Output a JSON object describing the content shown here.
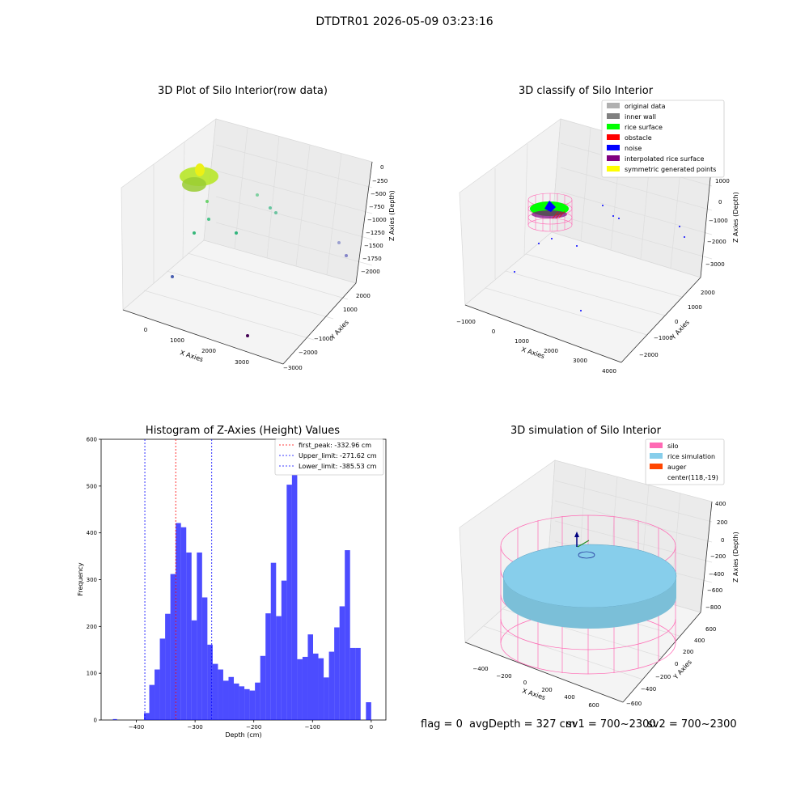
{
  "suptitle": "DTDTR01 2026-05-09 03:23:16",
  "panels": {
    "raw": {
      "title": "3D Plot of Silo Interior(row data)",
      "xlabel": "X Axies",
      "ylabel": "Y Axies",
      "zlabel": "Z Axies (Depth)",
      "x_ticks": [
        "0",
        "1000",
        "2000",
        "3000"
      ],
      "y_ticks": [
        "2000",
        "1000",
        "−1000",
        "−2000",
        "−3000"
      ],
      "z_ticks": [
        "0",
        "−250",
        "−500",
        "−750",
        "−1000",
        "−1250",
        "−1500",
        "−1750",
        "−2000"
      ]
    },
    "classify": {
      "title": "3D classify of Silo Interior",
      "xlabel": "X Axies",
      "ylabel": "Y Axies",
      "zlabel": "Z Axies (Depth)",
      "x_ticks": [
        "−1000",
        "0",
        "1000",
        "2000",
        "3000",
        "4000"
      ],
      "y_ticks": [
        "2000",
        "1000",
        "0",
        "−1000",
        "−2000"
      ],
      "z_ticks": [
        "1000",
        "0",
        "−1000",
        "−2000",
        "−3000"
      ],
      "legend": [
        {
          "label": "original data",
          "color": "#b0b0b0"
        },
        {
          "label": "inner wall",
          "color": "#808080"
        },
        {
          "label": "rice surface",
          "color": "#00ff00"
        },
        {
          "label": "obstacle",
          "color": "#ff0000"
        },
        {
          "label": "noise",
          "color": "#0000ff"
        },
        {
          "label": "interpolated rice surface",
          "color": "#800080"
        },
        {
          "label": "symmetric generated points",
          "color": "#ffff00"
        }
      ]
    },
    "simulation": {
      "title": "3D simulation of Silo Interior",
      "xlabel": "X Axies",
      "ylabel": "Y Axies",
      "zlabel": "Z Axies (Depth)",
      "x_ticks": [
        "−400",
        "−200",
        "0",
        "200",
        "400",
        "600"
      ],
      "y_ticks": [
        "600",
        "400",
        "200",
        "0",
        "−200",
        "−400",
        "−600"
      ],
      "z_ticks": [
        "400",
        "200",
        "0",
        "−200",
        "−400",
        "−600",
        "−800"
      ],
      "legend": [
        {
          "label": "silo",
          "color": "#ff69b4",
          "swatch": true
        },
        {
          "label": "rice simulation",
          "color": "#87ceeb",
          "swatch": true
        },
        {
          "label": "auger",
          "color": "#ff4500",
          "swatch": true
        },
        {
          "label": "center(118,-19)",
          "color": "#ffffff",
          "swatch": false
        }
      ]
    }
  },
  "chart_data": {
    "type": "bar",
    "title": "Histogram of Z-Axies (Height) Values",
    "xlabel": "Depth (cm)",
    "ylabel": "Frequency",
    "xlim": [
      -460,
      25
    ],
    "ylim": [
      0,
      600
    ],
    "x_ticks": [
      -400,
      -300,
      -200,
      -100,
      0
    ],
    "x_tick_labels": [
      "−400",
      "−300",
      "−200",
      "−100",
      "0"
    ],
    "y_ticks": [
      0,
      100,
      200,
      300,
      400,
      500,
      600
    ],
    "bar_color": "#0000ff",
    "bins": [
      {
        "x0": -440,
        "x1": -433,
        "count": 2
      },
      {
        "x0": -387,
        "x1": -378,
        "count": 15
      },
      {
        "x0": -378,
        "x1": -369,
        "count": 75
      },
      {
        "x0": -369,
        "x1": -360,
        "count": 108
      },
      {
        "x0": -360,
        "x1": -351,
        "count": 174
      },
      {
        "x0": -351,
        "x1": -342,
        "count": 227
      },
      {
        "x0": -342,
        "x1": -333,
        "count": 312
      },
      {
        "x0": -333,
        "x1": -324,
        "count": 421
      },
      {
        "x0": -324,
        "x1": -315,
        "count": 412
      },
      {
        "x0": -315,
        "x1": -306,
        "count": 358
      },
      {
        "x0": -306,
        "x1": -297,
        "count": 213
      },
      {
        "x0": -297,
        "x1": -288,
        "count": 358
      },
      {
        "x0": -288,
        "x1": -279,
        "count": 262
      },
      {
        "x0": -279,
        "x1": -270,
        "count": 161
      },
      {
        "x0": -270,
        "x1": -261,
        "count": 120
      },
      {
        "x0": -261,
        "x1": -252,
        "count": 108
      },
      {
        "x0": -252,
        "x1": -243,
        "count": 84
      },
      {
        "x0": -243,
        "x1": -234,
        "count": 92
      },
      {
        "x0": -234,
        "x1": -225,
        "count": 78
      },
      {
        "x0": -225,
        "x1": -216,
        "count": 72
      },
      {
        "x0": -216,
        "x1": -207,
        "count": 66
      },
      {
        "x0": -207,
        "x1": -198,
        "count": 63
      },
      {
        "x0": -198,
        "x1": -189,
        "count": 80
      },
      {
        "x0": -189,
        "x1": -180,
        "count": 137
      },
      {
        "x0": -180,
        "x1": -171,
        "count": 228
      },
      {
        "x0": -171,
        "x1": -162,
        "count": 336
      },
      {
        "x0": -162,
        "x1": -153,
        "count": 222
      },
      {
        "x0": -153,
        "x1": -144,
        "count": 298
      },
      {
        "x0": -144,
        "x1": -135,
        "count": 503
      },
      {
        "x0": -135,
        "x1": -126,
        "count": 538
      },
      {
        "x0": -126,
        "x1": -117,
        "count": 130
      },
      {
        "x0": -117,
        "x1": -108,
        "count": 135
      },
      {
        "x0": -108,
        "x1": -99,
        "count": 183
      },
      {
        "x0": -99,
        "x1": -90,
        "count": 142
      },
      {
        "x0": -90,
        "x1": -81,
        "count": 132
      },
      {
        "x0": -81,
        "x1": -72,
        "count": 91
      },
      {
        "x0": -72,
        "x1": -63,
        "count": 146
      },
      {
        "x0": -63,
        "x1": -54,
        "count": 198
      },
      {
        "x0": -54,
        "x1": -45,
        "count": 243
      },
      {
        "x0": -45,
        "x1": -36,
        "count": 363
      },
      {
        "x0": -36,
        "x1": -27,
        "count": 154
      },
      {
        "x0": -27,
        "x1": -18,
        "count": 154
      },
      {
        "x0": -18,
        "x1": -9,
        "count": 0
      },
      {
        "x0": -9,
        "x1": 0,
        "count": 38
      }
    ],
    "vlines": [
      {
        "value": -332.96,
        "color": "#ff0000",
        "label": "first_peak: -332.96 cm"
      },
      {
        "value": -271.62,
        "color": "#0000ff",
        "label": "Upper_limit: -271.62 cm"
      },
      {
        "value": -385.53,
        "color": "#0000ff",
        "label": "Lower_limit: -385.53 cm"
      }
    ],
    "legend_position": "top-right"
  },
  "footer": {
    "flag": "flag = 0",
    "avg_depth": "avgDepth = 327 cm",
    "sv1": "sv1 = 700~2300",
    "sv2": "sv2 = 700~2300"
  }
}
